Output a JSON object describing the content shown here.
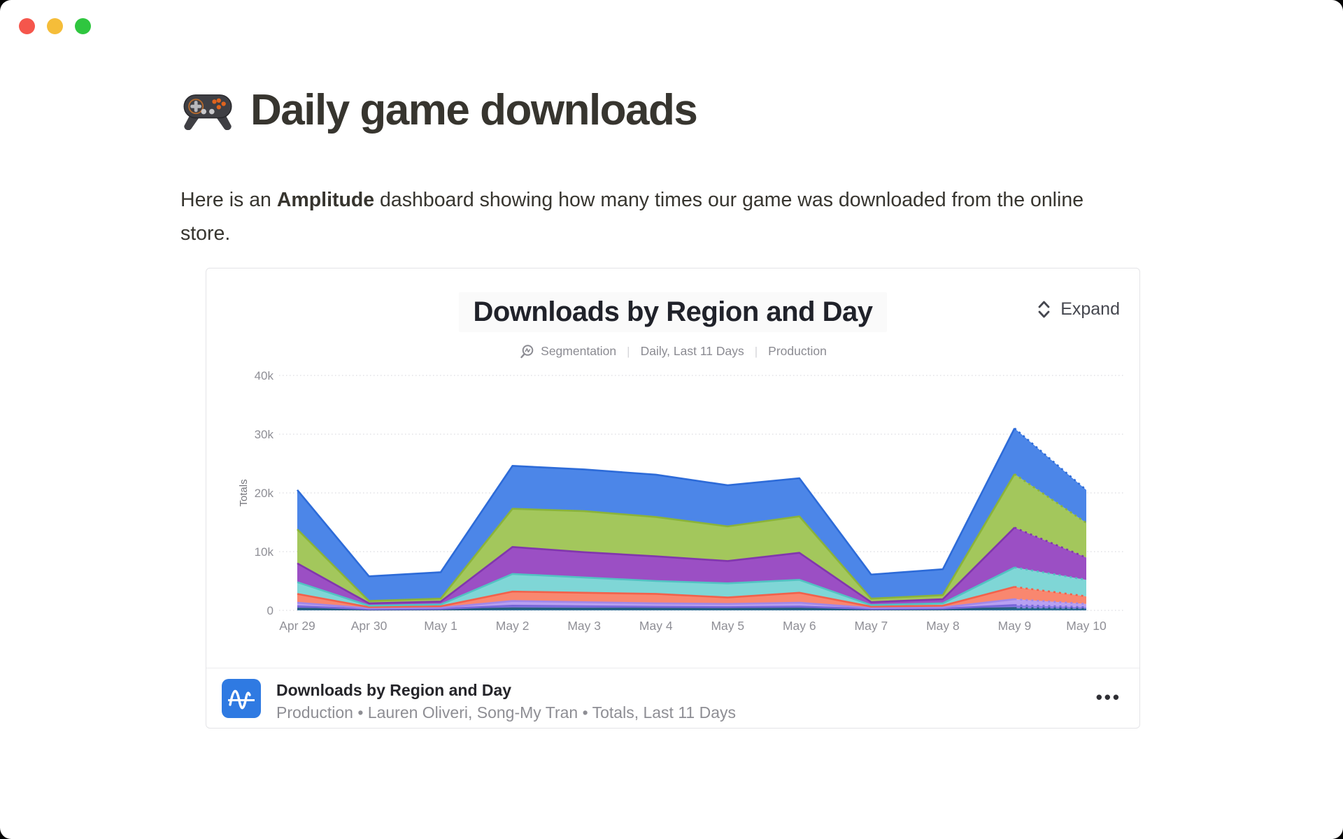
{
  "page": {
    "title": "Daily game downloads",
    "intro": {
      "pre": "Here is an ",
      "bold": "Amplitude",
      "post": " dashboard showing how many times our game was downloaded from the online store."
    }
  },
  "card": {
    "chart_header": {
      "title": "Downloads by Region and Day",
      "expand_label": "Expand",
      "meta": {
        "chart_type": "Segmentation",
        "divider": "|",
        "range": "Daily, Last 11 Days",
        "environment": "Production"
      }
    },
    "footer": {
      "title": "Downloads by Region and Day",
      "subtitle": "Production • Lauren Oliveri, Song-My Tran • Totals, Last 11 Days",
      "menu": "•••"
    }
  },
  "chart_data": {
    "type": "area",
    "stacked": true,
    "title": "Downloads by Region and Day",
    "xlabel": "",
    "ylabel": "Totals",
    "ylim": [
      0,
      40000
    ],
    "ytick_values": [
      0,
      10000,
      20000,
      30000,
      40000
    ],
    "ytick_labels": [
      "0",
      "10k",
      "20k",
      "30k",
      "40k"
    ],
    "grid": "dotted-horizontal",
    "legend": "none",
    "last_segment_dashed": true,
    "categories": [
      "Apr 29",
      "Apr 30",
      "May 1",
      "May 2",
      "May 3",
      "May 4",
      "May 5",
      "May 6",
      "May 7",
      "May 8",
      "May 9",
      "May 10"
    ],
    "series": [
      {
        "name": "series-navy",
        "color": "#2e6e96",
        "edge": "#265d80",
        "values": [
          300,
          120,
          150,
          350,
          300,
          300,
          280,
          300,
          150,
          180,
          400,
          300
        ]
      },
      {
        "name": "series-violet",
        "color": "#8a7ae6",
        "edge": "#7765d9",
        "values": [
          400,
          80,
          100,
          450,
          400,
          300,
          270,
          350,
          100,
          120,
          500,
          250
        ]
      },
      {
        "name": "series-lavender",
        "color": "#b7a0f2",
        "edge": "#a187e8",
        "values": [
          600,
          150,
          200,
          800,
          700,
          600,
          550,
          650,
          150,
          200,
          1000,
          550
        ]
      },
      {
        "name": "series-salmon",
        "color": "#f9876f",
        "edge": "#f2614b",
        "values": [
          1500,
          200,
          250,
          1600,
          1600,
          1600,
          1100,
          1700,
          250,
          300,
          2100,
          1300
        ]
      },
      {
        "name": "series-teal",
        "color": "#7fd6d6",
        "edge": "#52c2c2",
        "values": [
          2000,
          250,
          300,
          3000,
          2600,
          2200,
          2400,
          2200,
          250,
          400,
          3300,
          2800
        ]
      },
      {
        "name": "series-purple",
        "color": "#9b4fc4",
        "edge": "#8136ad",
        "values": [
          3200,
          400,
          500,
          4600,
          4300,
          4200,
          3800,
          4600,
          500,
          700,
          6800,
          3800
        ]
      },
      {
        "name": "series-green",
        "color": "#a3c75c",
        "edge": "#8ab33a",
        "values": [
          5800,
          400,
          500,
          6500,
          7000,
          6700,
          5900,
          6200,
          600,
          700,
          9100,
          5900
        ]
      },
      {
        "name": "series-blue",
        "color": "#4c86e8",
        "edge": "#2d6bd8",
        "values": [
          6700,
          4200,
          4500,
          7300,
          7100,
          7200,
          7000,
          6500,
          4100,
          4400,
          7800,
          5600
        ]
      }
    ],
    "totals_by_day": [
      20500,
      5800,
      6500,
      24600,
      24000,
      23100,
      21300,
      22500,
      6100,
      7000,
      31000,
      20500
    ]
  }
}
